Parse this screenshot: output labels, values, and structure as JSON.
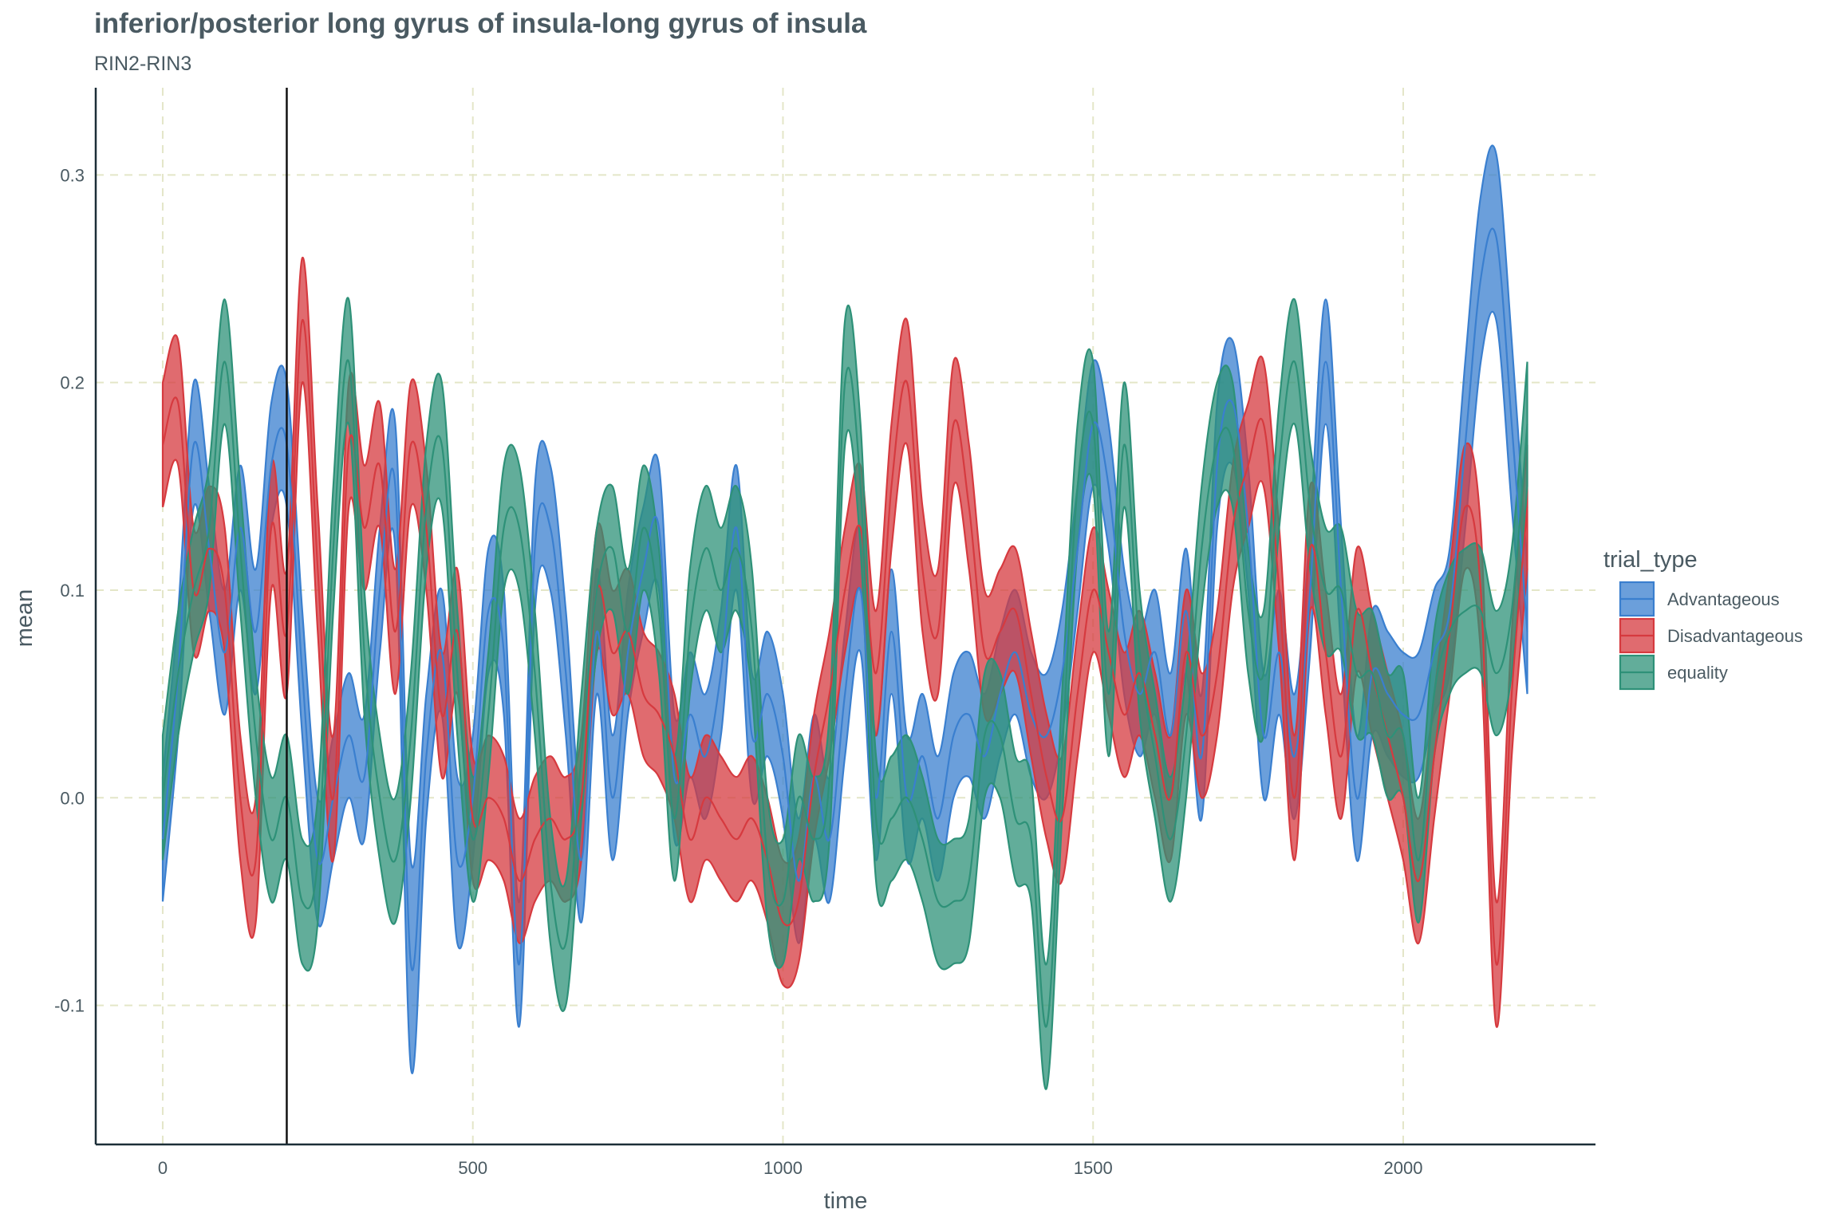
{
  "chart_data": {
    "type": "area",
    "title": "inferior/posterior long gyrus of insula-long gyrus of insula",
    "subtitle": "RIN2-RIN3",
    "xlabel": "time",
    "ylabel": "mean",
    "xlim": [
      -108,
      2310
    ],
    "ylim": [
      -0.167,
      0.342
    ],
    "x_ticks": [
      0,
      500,
      1000,
      1500,
      2000
    ],
    "y_ticks": [
      -0.1,
      0.0,
      0.1,
      0.2,
      0.3
    ],
    "y_tick_labels": [
      "-0.1",
      "0.0",
      "0.1",
      "0.2",
      "0.3"
    ],
    "grid": true,
    "vline_x": 200,
    "legend": {
      "title": "trial_type",
      "position": "right"
    },
    "series": [
      {
        "name": "Advantageous",
        "color": "#3a7fcf",
        "x": [
          0,
          25,
          50,
          75,
          100,
          125,
          150,
          175,
          200,
          225,
          250,
          275,
          300,
          325,
          350,
          375,
          400,
          425,
          450,
          475,
          500,
          525,
          550,
          575,
          600,
          625,
          650,
          675,
          700,
          725,
          750,
          775,
          800,
          825,
          850,
          875,
          900,
          925,
          950,
          975,
          1000,
          1025,
          1050,
          1075,
          1100,
          1125,
          1150,
          1175,
          1200,
          1225,
          1250,
          1275,
          1300,
          1325,
          1350,
          1375,
          1400,
          1425,
          1450,
          1475,
          1500,
          1525,
          1550,
          1575,
          1600,
          1625,
          1650,
          1675,
          1700,
          1725,
          1750,
          1775,
          1800,
          1825,
          1850,
          1875,
          1900,
          1925,
          1950,
          1975,
          2000,
          2025,
          2050,
          2075,
          2100,
          2125,
          2150,
          2175,
          2200
        ],
        "mean": [
          -0.02,
          0.06,
          0.17,
          0.12,
          0.07,
          0.13,
          0.08,
          0.16,
          0.17,
          0.06,
          -0.03,
          0.0,
          0.03,
          0.01,
          0.1,
          0.15,
          -0.08,
          0.02,
          0.07,
          -0.03,
          0.0,
          0.09,
          0.07,
          -0.08,
          0.12,
          0.13,
          0.06,
          -0.03,
          0.08,
          0.0,
          0.07,
          0.11,
          0.13,
          0.01,
          0.04,
          0.02,
          0.06,
          0.13,
          0.03,
          0.05,
          0.02,
          -0.04,
          0.01,
          -0.02,
          0.05,
          0.1,
          0.0,
          0.08,
          0.0,
          0.02,
          -0.01,
          0.03,
          0.04,
          0.02,
          0.05,
          0.07,
          0.04,
          0.03,
          0.06,
          0.12,
          0.18,
          0.15,
          0.08,
          0.05,
          0.07,
          0.03,
          0.09,
          0.02,
          0.16,
          0.19,
          0.13,
          0.03,
          0.07,
          0.02,
          0.1,
          0.21,
          0.1,
          0.0,
          0.06,
          0.05,
          0.04,
          0.04,
          0.07,
          0.09,
          0.17,
          0.25,
          0.27,
          0.18,
          0.08
        ],
        "lower": [
          -0.05,
          0.03,
          0.14,
          0.09,
          0.04,
          0.1,
          0.05,
          0.13,
          0.14,
          0.03,
          -0.06,
          -0.03,
          0.0,
          -0.02,
          0.07,
          0.12,
          -0.13,
          -0.01,
          0.04,
          -0.07,
          -0.03,
          0.06,
          0.04,
          -0.11,
          0.09,
          0.1,
          0.03,
          -0.06,
          0.05,
          -0.03,
          0.04,
          0.08,
          0.1,
          -0.02,
          0.01,
          -0.01,
          0.03,
          0.1,
          0.0,
          0.02,
          -0.01,
          -0.07,
          -0.02,
          -0.05,
          0.02,
          0.07,
          -0.03,
          0.05,
          -0.03,
          -0.01,
          -0.04,
          0.0,
          0.01,
          -0.01,
          0.02,
          0.04,
          0.01,
          0.0,
          0.03,
          0.09,
          0.15,
          0.12,
          0.05,
          0.02,
          0.04,
          0.0,
          0.06,
          -0.01,
          0.13,
          0.16,
          0.1,
          0.0,
          0.04,
          -0.01,
          0.07,
          0.18,
          0.07,
          -0.03,
          0.03,
          0.02,
          0.01,
          0.01,
          0.04,
          0.06,
          0.13,
          0.21,
          0.23,
          0.14,
          0.05
        ],
        "upper": [
          0.01,
          0.09,
          0.2,
          0.15,
          0.1,
          0.16,
          0.11,
          0.19,
          0.2,
          0.09,
          0.0,
          0.03,
          0.06,
          0.04,
          0.13,
          0.18,
          -0.03,
          0.05,
          0.1,
          0.01,
          0.03,
          0.12,
          0.1,
          -0.05,
          0.15,
          0.16,
          0.09,
          0.0,
          0.11,
          0.03,
          0.1,
          0.14,
          0.16,
          0.04,
          0.07,
          0.05,
          0.09,
          0.16,
          0.06,
          0.08,
          0.05,
          -0.01,
          0.04,
          0.01,
          0.08,
          0.13,
          0.03,
          0.11,
          0.03,
          0.05,
          0.02,
          0.06,
          0.07,
          0.05,
          0.08,
          0.1,
          0.07,
          0.06,
          0.09,
          0.15,
          0.21,
          0.18,
          0.11,
          0.08,
          0.1,
          0.06,
          0.12,
          0.05,
          0.19,
          0.22,
          0.16,
          0.06,
          0.1,
          0.05,
          0.13,
          0.24,
          0.13,
          0.03,
          0.09,
          0.08,
          0.07,
          0.07,
          0.1,
          0.12,
          0.21,
          0.29,
          0.31,
          0.22,
          0.11
        ]
      },
      {
        "name": "Disadvantageous",
        "color": "#d63a3f",
        "x": [
          0,
          25,
          50,
          75,
          100,
          125,
          150,
          175,
          200,
          225,
          250,
          275,
          300,
          325,
          350,
          375,
          400,
          425,
          450,
          475,
          500,
          525,
          550,
          575,
          600,
          625,
          650,
          675,
          700,
          725,
          750,
          775,
          800,
          825,
          850,
          875,
          900,
          925,
          950,
          975,
          1000,
          1025,
          1050,
          1075,
          1100,
          1125,
          1150,
          1175,
          1200,
          1225,
          1250,
          1275,
          1300,
          1325,
          1350,
          1375,
          1400,
          1425,
          1450,
          1475,
          1500,
          1525,
          1550,
          1575,
          1600,
          1625,
          1650,
          1675,
          1700,
          1725,
          1750,
          1775,
          1800,
          1825,
          1850,
          1875,
          1900,
          1925,
          1950,
          1975,
          2000,
          2025,
          2050,
          2075,
          2100,
          2125,
          2150,
          2175,
          2200
        ],
        "mean": [
          0.17,
          0.19,
          0.1,
          0.12,
          0.1,
          0.0,
          -0.03,
          0.13,
          0.08,
          0.23,
          0.11,
          0.0,
          0.17,
          0.13,
          0.16,
          0.08,
          0.17,
          0.13,
          0.04,
          0.08,
          -0.01,
          0.0,
          -0.01,
          -0.04,
          -0.02,
          -0.01,
          -0.02,
          0.0,
          0.1,
          0.07,
          0.08,
          0.05,
          0.04,
          0.02,
          -0.02,
          0.0,
          -0.01,
          -0.02,
          -0.01,
          -0.03,
          -0.06,
          -0.05,
          0.01,
          0.05,
          0.1,
          0.13,
          0.06,
          0.15,
          0.2,
          0.11,
          0.08,
          0.18,
          0.14,
          0.07,
          0.08,
          0.09,
          0.05,
          0.01,
          -0.01,
          0.05,
          0.1,
          0.07,
          0.04,
          0.06,
          0.03,
          0.0,
          0.07,
          0.03,
          0.06,
          0.13,
          0.16,
          0.18,
          0.1,
          0.0,
          0.12,
          0.07,
          0.02,
          0.09,
          0.06,
          0.03,
          0.0,
          -0.04,
          0.02,
          0.08,
          0.14,
          0.1,
          -0.08,
          0.05,
          0.14
        ],
        "lower": [
          0.14,
          0.16,
          0.07,
          0.09,
          0.07,
          -0.03,
          -0.06,
          0.1,
          0.05,
          0.2,
          0.08,
          -0.03,
          0.14,
          0.1,
          0.13,
          0.05,
          0.14,
          0.1,
          0.01,
          0.05,
          -0.04,
          -0.03,
          -0.04,
          -0.07,
          -0.05,
          -0.04,
          -0.05,
          -0.03,
          0.07,
          0.04,
          0.05,
          0.02,
          0.01,
          -0.01,
          -0.05,
          -0.03,
          -0.04,
          -0.05,
          -0.04,
          -0.06,
          -0.09,
          -0.08,
          -0.02,
          0.02,
          0.07,
          0.1,
          0.03,
          0.12,
          0.17,
          0.08,
          0.05,
          0.15,
          0.11,
          0.04,
          0.05,
          0.06,
          0.02,
          -0.02,
          -0.04,
          0.02,
          0.07,
          0.04,
          0.01,
          0.03,
          0.0,
          -0.03,
          0.04,
          0.0,
          0.03,
          0.1,
          0.13,
          0.15,
          0.07,
          -0.03,
          0.09,
          0.04,
          -0.01,
          0.06,
          0.03,
          0.0,
          -0.03,
          -0.07,
          -0.01,
          0.05,
          0.11,
          0.07,
          -0.11,
          0.02,
          0.11
        ],
        "upper": [
          0.2,
          0.22,
          0.13,
          0.15,
          0.13,
          0.03,
          0.0,
          0.16,
          0.11,
          0.26,
          0.14,
          0.03,
          0.2,
          0.16,
          0.19,
          0.11,
          0.2,
          0.16,
          0.07,
          0.11,
          0.02,
          0.03,
          0.02,
          -0.01,
          0.01,
          0.02,
          0.01,
          0.03,
          0.13,
          0.1,
          0.11,
          0.08,
          0.07,
          0.05,
          0.01,
          0.03,
          0.02,
          0.01,
          0.02,
          0.0,
          -0.03,
          -0.02,
          0.04,
          0.08,
          0.13,
          0.16,
          0.09,
          0.18,
          0.23,
          0.14,
          0.11,
          0.21,
          0.17,
          0.1,
          0.11,
          0.12,
          0.08,
          0.04,
          0.02,
          0.08,
          0.13,
          0.1,
          0.07,
          0.09,
          0.06,
          0.03,
          0.1,
          0.06,
          0.09,
          0.16,
          0.19,
          0.21,
          0.13,
          0.03,
          0.15,
          0.1,
          0.05,
          0.12,
          0.09,
          0.06,
          0.03,
          -0.01,
          0.05,
          0.11,
          0.17,
          0.13,
          -0.05,
          0.08,
          0.17
        ]
      },
      {
        "name": "equality",
        "color": "#2e9178",
        "x": [
          0,
          25,
          50,
          75,
          100,
          125,
          150,
          175,
          200,
          225,
          250,
          275,
          300,
          325,
          350,
          375,
          400,
          425,
          450,
          475,
          500,
          525,
          550,
          575,
          600,
          625,
          650,
          675,
          700,
          725,
          750,
          775,
          800,
          825,
          850,
          875,
          900,
          925,
          950,
          975,
          1000,
          1025,
          1050,
          1075,
          1100,
          1125,
          1150,
          1175,
          1200,
          1225,
          1250,
          1275,
          1300,
          1325,
          1350,
          1375,
          1400,
          1425,
          1450,
          1475,
          1500,
          1525,
          1550,
          1575,
          1600,
          1625,
          1650,
          1675,
          1700,
          1725,
          1750,
          1775,
          1800,
          1825,
          1850,
          1875,
          1900,
          1925,
          1950,
          1975,
          2000,
          2025,
          2050,
          2075,
          2100,
          2125,
          2150,
          2175,
          2200
        ],
        "mean": [
          0.0,
          0.06,
          0.1,
          0.13,
          0.21,
          0.12,
          0.03,
          -0.02,
          0.0,
          -0.05,
          -0.03,
          0.12,
          0.21,
          0.07,
          0.0,
          -0.03,
          0.03,
          0.14,
          0.17,
          0.06,
          -0.02,
          0.04,
          0.13,
          0.13,
          0.06,
          -0.04,
          -0.07,
          0.02,
          0.1,
          0.12,
          0.08,
          0.13,
          0.09,
          -0.01,
          0.08,
          0.12,
          0.1,
          0.12,
          0.08,
          -0.03,
          -0.05,
          0.0,
          -0.02,
          0.01,
          0.2,
          0.15,
          -0.01,
          -0.01,
          0.0,
          -0.02,
          -0.05,
          -0.05,
          -0.04,
          0.03,
          0.03,
          -0.01,
          -0.02,
          -0.11,
          0.02,
          0.15,
          0.18,
          0.05,
          0.17,
          0.07,
          0.02,
          -0.02,
          0.03,
          0.12,
          0.17,
          0.17,
          0.09,
          0.06,
          0.16,
          0.21,
          0.14,
          0.1,
          0.1,
          0.06,
          0.06,
          0.03,
          0.03,
          -0.03,
          0.05,
          0.08,
          0.09,
          0.09,
          0.06,
          0.09,
          0.18
        ],
        "lower": [
          -0.03,
          0.03,
          0.07,
          0.1,
          0.18,
          0.09,
          0.0,
          -0.05,
          -0.03,
          -0.08,
          -0.06,
          0.09,
          0.18,
          0.04,
          -0.03,
          -0.06,
          0.0,
          0.11,
          0.14,
          0.03,
          -0.05,
          0.01,
          0.1,
          0.1,
          0.03,
          -0.07,
          -0.1,
          -0.01,
          0.07,
          0.09,
          0.05,
          0.1,
          0.06,
          -0.04,
          0.05,
          0.09,
          0.07,
          0.09,
          0.05,
          -0.06,
          -0.08,
          -0.03,
          -0.05,
          -0.02,
          0.17,
          0.12,
          -0.04,
          -0.04,
          -0.03,
          -0.05,
          -0.08,
          -0.08,
          -0.07,
          0.0,
          0.0,
          -0.04,
          -0.05,
          -0.14,
          -0.01,
          0.12,
          0.15,
          0.02,
          0.14,
          0.04,
          -0.01,
          -0.05,
          0.0,
          0.09,
          0.14,
          0.14,
          0.06,
          0.03,
          0.13,
          0.18,
          0.11,
          0.07,
          0.07,
          0.03,
          0.03,
          0.0,
          0.0,
          -0.06,
          0.02,
          0.05,
          0.06,
          0.06,
          0.03,
          0.06,
          0.15
        ],
        "upper": [
          0.03,
          0.09,
          0.13,
          0.16,
          0.24,
          0.15,
          0.06,
          0.01,
          0.03,
          -0.02,
          0.0,
          0.15,
          0.24,
          0.1,
          0.03,
          0.0,
          0.06,
          0.17,
          0.2,
          0.09,
          0.01,
          0.07,
          0.16,
          0.16,
          0.09,
          -0.01,
          -0.04,
          0.05,
          0.13,
          0.15,
          0.11,
          0.16,
          0.12,
          0.02,
          0.11,
          0.15,
          0.13,
          0.15,
          0.11,
          0.0,
          -0.02,
          0.03,
          0.01,
          0.04,
          0.23,
          0.18,
          0.02,
          0.02,
          0.03,
          0.01,
          -0.02,
          -0.02,
          -0.01,
          0.06,
          0.06,
          0.02,
          0.01,
          -0.08,
          0.05,
          0.18,
          0.21,
          0.08,
          0.2,
          0.1,
          0.05,
          0.01,
          0.06,
          0.15,
          0.2,
          0.2,
          0.12,
          0.09,
          0.19,
          0.24,
          0.17,
          0.13,
          0.13,
          0.09,
          0.09,
          0.06,
          0.06,
          0.0,
          0.08,
          0.11,
          0.12,
          0.12,
          0.09,
          0.12,
          0.21
        ]
      }
    ]
  }
}
